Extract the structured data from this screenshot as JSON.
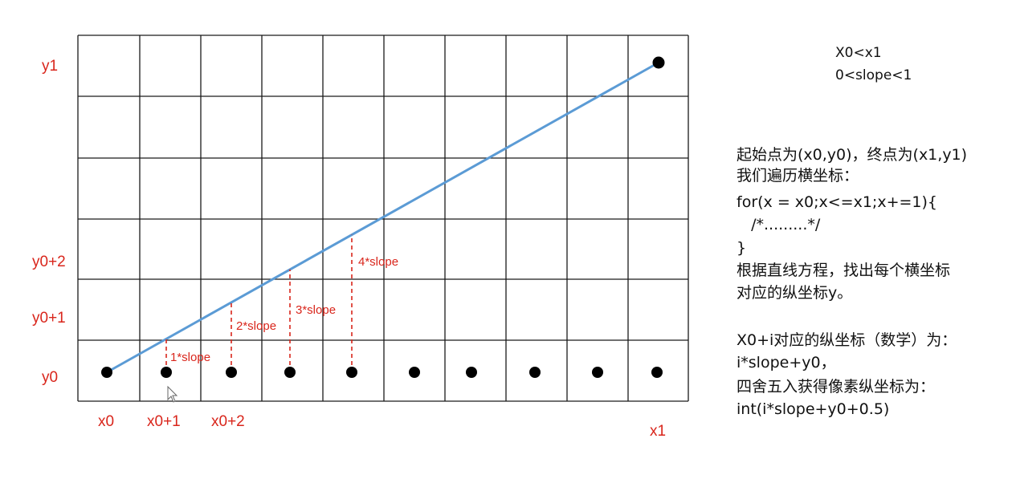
{
  "diagram": {
    "x_labels": [
      "x0",
      "x0+1",
      "x0+2",
      "x1"
    ],
    "y_labels": [
      "y1",
      "y0+2",
      "y0+1",
      "y0"
    ],
    "slope_labels": [
      "1*slope",
      "2*slope",
      "3*slope",
      "4*slope"
    ],
    "colors": {
      "line": "#5b9bd5",
      "labels": "#d9261c",
      "grid": "#1a1a1a",
      "dots": "#000000"
    }
  },
  "notes": {
    "conditions": [
      "X0<x1",
      "0<slope<1"
    ],
    "body": [
      "起始点为(x0,y0)，终点为(x1,y1)",
      "我们遍历横坐标：",
      "for(x = x0;x<=x1;x+=1){",
      "   /*.........*/",
      "}",
      "根据直线方程，找出每个横坐标",
      "对应的纵坐标y。",
      "",
      "X0+i对应的纵坐标（数学）为：",
      "i*slope+y0，",
      "四舍五入获得像素纵坐标为：",
      "int(i*slope+y0+0.5)"
    ]
  }
}
